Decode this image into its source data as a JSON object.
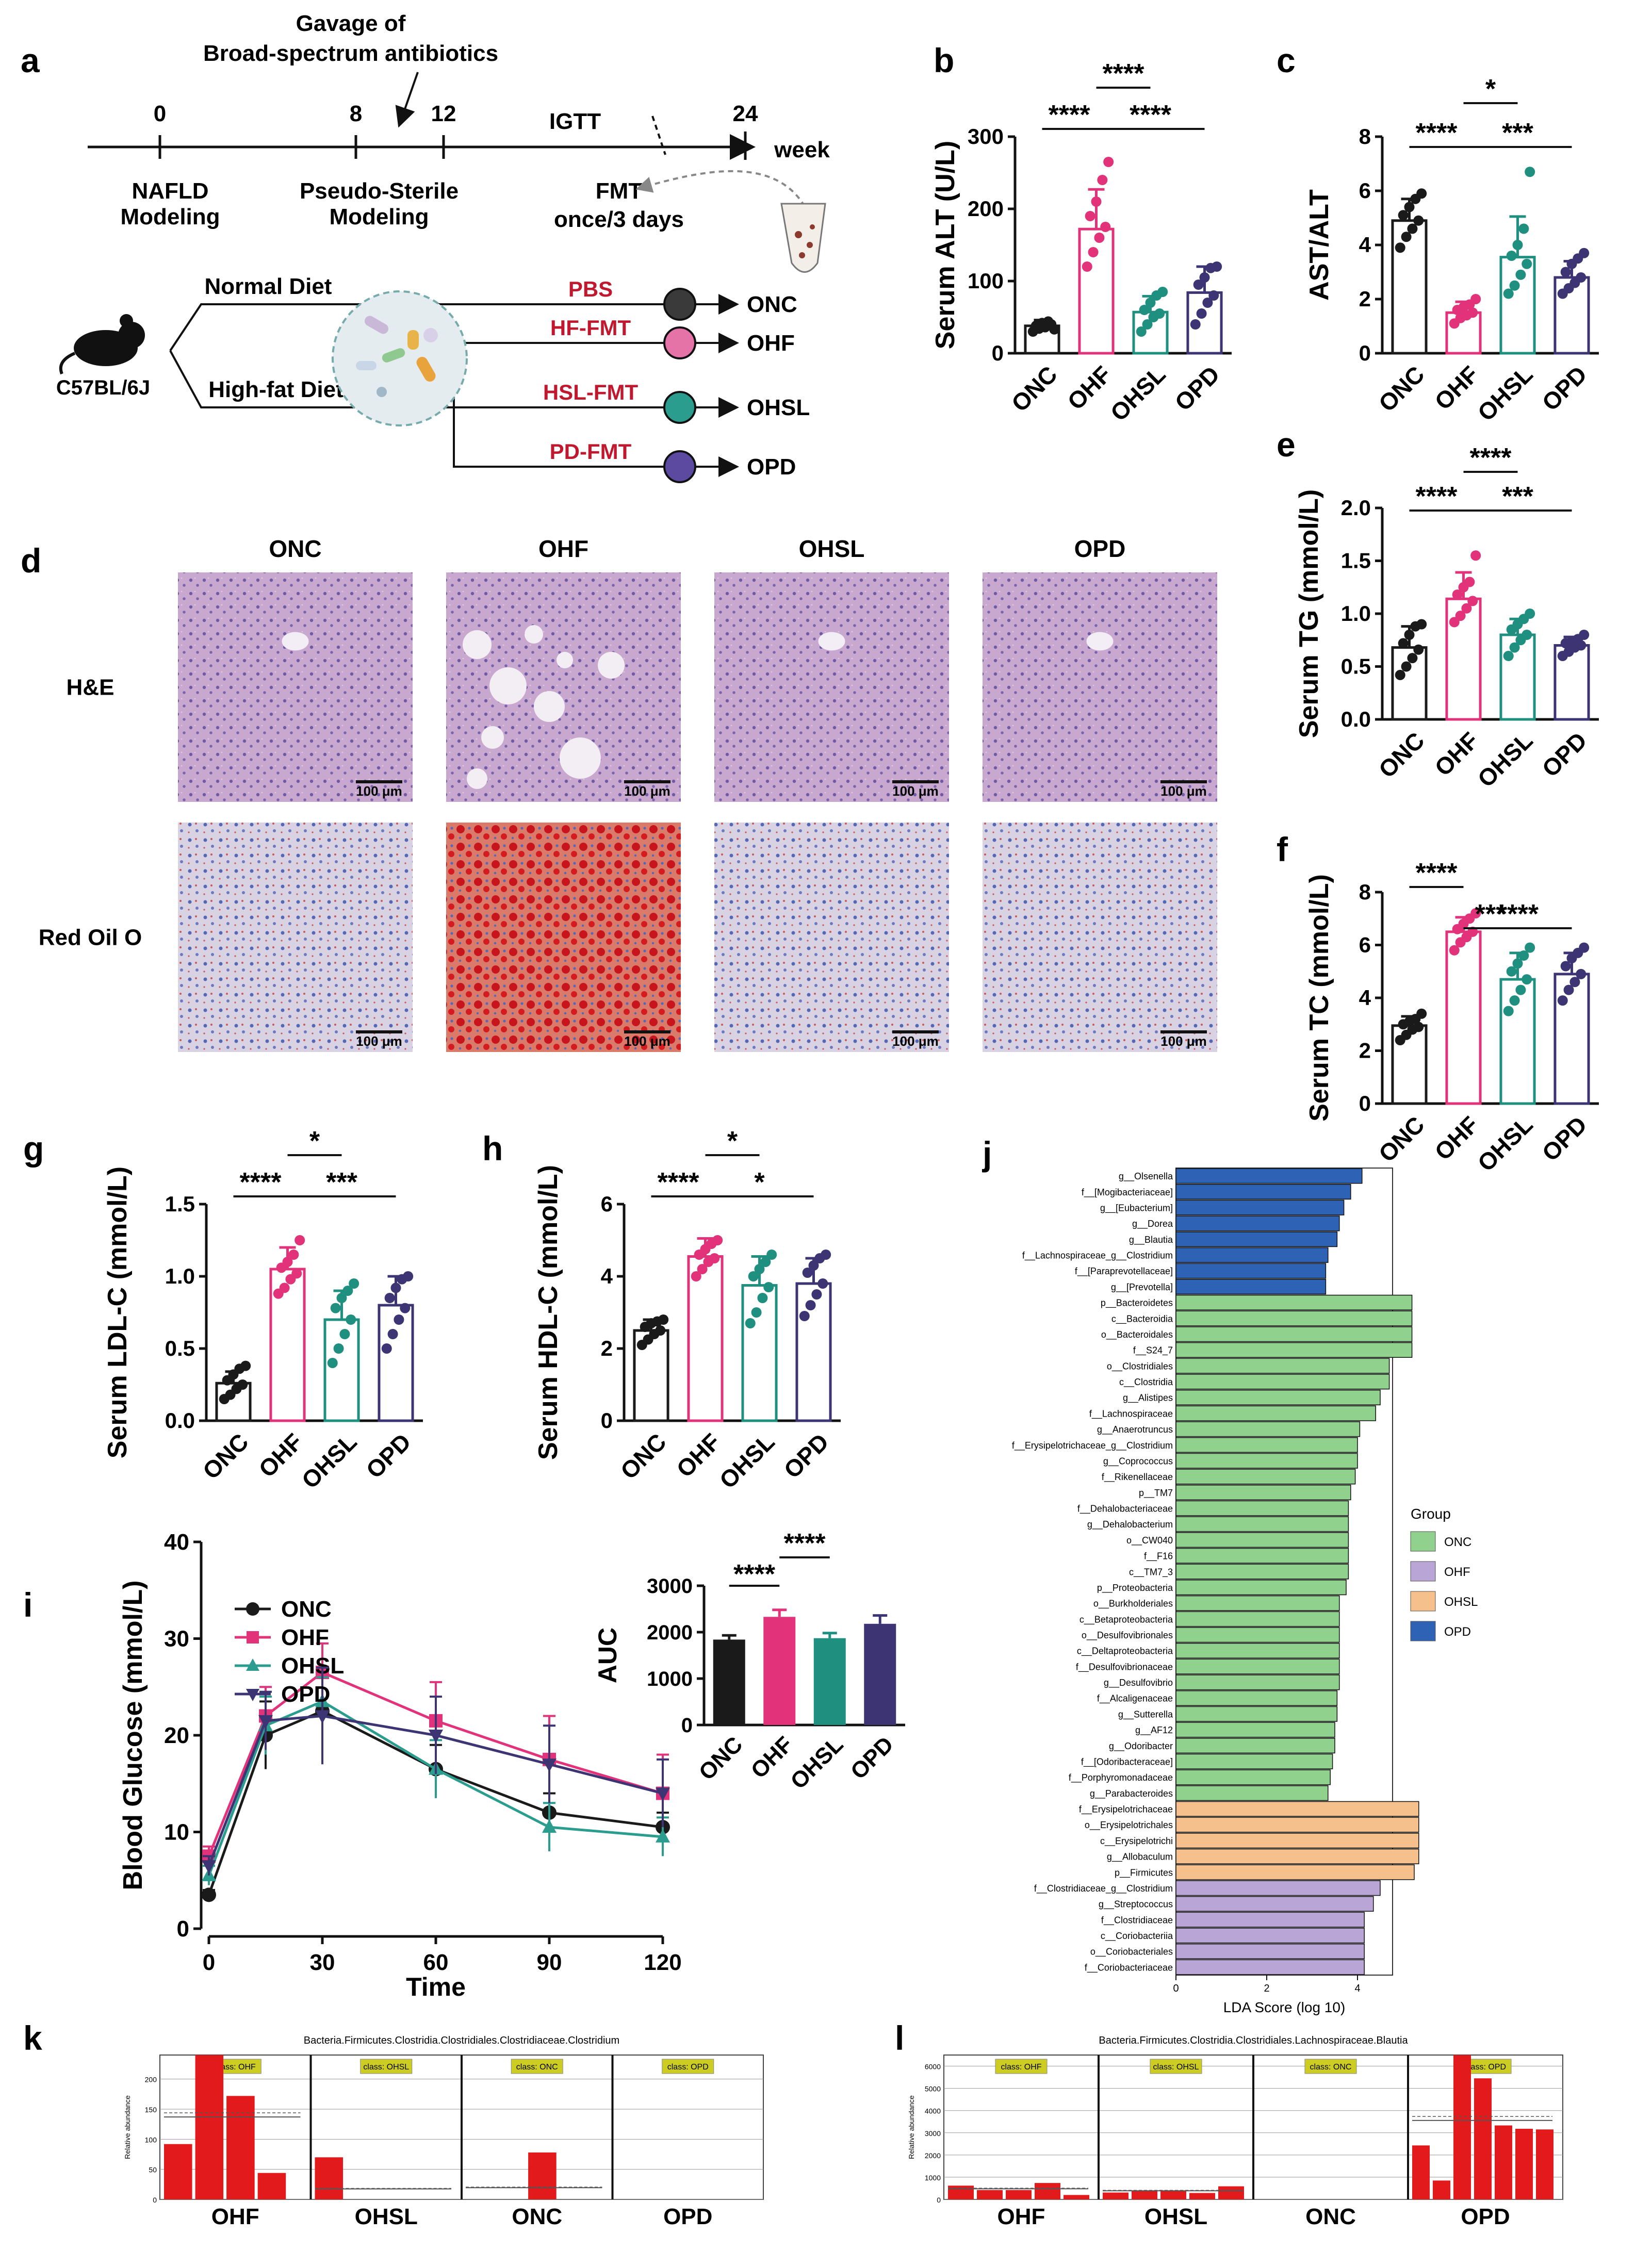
{
  "colors": {
    "ONC": "#1a1a1a",
    "OHF": "#e2327a",
    "OHSL": "#1f8f80",
    "OHSL_alt": "#2a9d8f",
    "OPD": "#3d3573",
    "green": "#8fd18d",
    "purple": "#b9a6d6",
    "orange": "#f6c08c",
    "blue": "#2e62b5",
    "red": "#e31a1c",
    "text_red": "#c0182e"
  },
  "panel_a": {
    "letter": "a",
    "gavage": [
      "Gavage of",
      "Broad-spectrum antibiotics"
    ],
    "igtt": "IGTT",
    "ticks": [
      "0",
      "8",
      "12",
      "24"
    ],
    "week": "week",
    "nafld": [
      "NAFLD",
      "Modeling"
    ],
    "pseudo": [
      "Pseudo-Sterile",
      "Modeling"
    ],
    "fmt": [
      "FMT",
      "once/3 days"
    ],
    "mouse": "C57BL/6J",
    "normal_diet": "Normal Diet",
    "high_fat_diet": "High-fat Diet",
    "treatments": [
      "PBS",
      "HF-FMT",
      "HSL-FMT",
      "PD-FMT"
    ],
    "groups": [
      "ONC",
      "OHF",
      "OHSL",
      "OPD"
    ]
  },
  "groups": [
    "ONC",
    "OHF",
    "OHSL",
    "OPD"
  ],
  "panel_b": {
    "letter": "b",
    "ylabel": "Serum ALT (U/L)",
    "ticks": [
      "0",
      "100",
      "200",
      "300"
    ],
    "ymax": 300,
    "means": [
      38,
      172,
      57,
      84
    ],
    "sd": [
      8,
      55,
      22,
      36
    ],
    "points": [
      [
        30,
        34,
        36,
        40,
        38,
        42,
        44,
        33
      ],
      [
        120,
        140,
        160,
        175,
        190,
        210,
        240,
        265
      ],
      [
        30,
        40,
        50,
        55,
        60,
        70,
        80,
        85
      ],
      [
        40,
        55,
        70,
        80,
        95,
        105,
        118,
        120
      ]
    ],
    "sig": [
      "****",
      "****",
      "****"
    ]
  },
  "panel_c": {
    "letter": "c",
    "ylabel": "AST/ALT",
    "ticks": [
      "0",
      "2",
      "4",
      "6",
      "8"
    ],
    "ymax": 8,
    "means": [
      4.9,
      1.5,
      3.55,
      2.8
    ],
    "sd": [
      0.8,
      0.4,
      1.5,
      0.6
    ],
    "points": [
      [
        3.9,
        4.3,
        4.6,
        4.9,
        5.1,
        5.4,
        5.7,
        5.9
      ],
      [
        1.1,
        1.3,
        1.4,
        1.5,
        1.6,
        1.7,
        1.8,
        2.0
      ],
      [
        2.2,
        2.5,
        2.9,
        3.3,
        3.6,
        4.0,
        4.6,
        6.7
      ],
      [
        2.2,
        2.4,
        2.6,
        2.8,
        3.0,
        3.3,
        3.5,
        3.7
      ]
    ],
    "sig": [
      "****",
      "***",
      "*"
    ]
  },
  "panel_e": {
    "letter": "e",
    "ylabel": "Serum TG (mmol/L)",
    "ticks": [
      "0.0",
      "0.5",
      "1.0",
      "1.5",
      "2.0"
    ],
    "ymax": 2.0,
    "means": [
      0.68,
      1.14,
      0.8,
      0.7
    ],
    "sd": [
      0.2,
      0.25,
      0.15,
      0.08
    ],
    "points": [
      [
        0.42,
        0.5,
        0.58,
        0.66,
        0.72,
        0.8,
        0.88,
        0.9
      ],
      [
        0.92,
        0.98,
        1.05,
        1.12,
        1.18,
        1.25,
        1.3,
        1.55
      ],
      [
        0.6,
        0.68,
        0.75,
        0.8,
        0.85,
        0.9,
        0.95,
        1.0
      ],
      [
        0.6,
        0.64,
        0.68,
        0.7,
        0.72,
        0.74,
        0.76,
        0.8
      ]
    ],
    "sig": [
      "****",
      "***",
      "****"
    ]
  },
  "panel_f": {
    "letter": "f",
    "ylabel": "Serum TC (mmol/L)",
    "ticks": [
      "0",
      "2",
      "4",
      "6",
      "8"
    ],
    "ymax": 8,
    "means": [
      2.95,
      6.5,
      4.7,
      4.9
    ],
    "sd": [
      0.35,
      0.55,
      1.0,
      0.8
    ],
    "points": [
      [
        2.4,
        2.6,
        2.8,
        2.9,
        3.0,
        3.1,
        3.2,
        3.4
      ],
      [
        5.8,
        6.1,
        6.3,
        6.5,
        6.6,
        6.8,
        7.0,
        7.2
      ],
      [
        3.5,
        3.9,
        4.3,
        4.7,
        5.0,
        5.3,
        5.6,
        5.9
      ],
      [
        3.9,
        4.3,
        4.6,
        4.9,
        5.2,
        5.5,
        5.7,
        5.9
      ]
    ],
    "sig": [
      "****",
      "****",
      "***"
    ]
  },
  "panel_g": {
    "letter": "g",
    "ylabel": "Serum LDL-C (mmol/L)",
    "ticks": [
      "0.0",
      "0.5",
      "1.0",
      "1.5"
    ],
    "ymax": 1.5,
    "means": [
      0.26,
      1.05,
      0.7,
      0.8
    ],
    "sd": [
      0.08,
      0.15,
      0.2,
      0.2
    ],
    "points": [
      [
        0.15,
        0.18,
        0.22,
        0.25,
        0.28,
        0.32,
        0.36,
        0.38
      ],
      [
        0.88,
        0.92,
        0.98,
        1.02,
        1.06,
        1.1,
        1.15,
        1.25
      ],
      [
        0.4,
        0.5,
        0.6,
        0.7,
        0.78,
        0.85,
        0.9,
        0.95
      ],
      [
        0.5,
        0.6,
        0.7,
        0.78,
        0.85,
        0.92,
        0.98,
        1.0
      ]
    ],
    "sig": [
      "****",
      "***",
      "*"
    ]
  },
  "panel_h": {
    "letter": "h",
    "ylabel": "Serum HDL-C (mmol/L)",
    "ticks": [
      "0",
      "2",
      "4",
      "6"
    ],
    "ymax": 6,
    "means": [
      2.5,
      4.55,
      3.75,
      3.8
    ],
    "sd": [
      0.3,
      0.5,
      0.8,
      0.7
    ],
    "points": [
      [
        2.1,
        2.25,
        2.4,
        2.5,
        2.6,
        2.7,
        2.75,
        2.8
      ],
      [
        4.0,
        4.2,
        4.4,
        4.5,
        4.6,
        4.75,
        4.9,
        5.0
      ],
      [
        2.7,
        3.0,
        3.4,
        3.7,
        4.0,
        4.2,
        4.4,
        4.6
      ],
      [
        2.9,
        3.2,
        3.5,
        3.8,
        4.1,
        4.3,
        4.5,
        4.6
      ]
    ],
    "sig": [
      "****",
      "*",
      "*"
    ]
  },
  "panel_d": {
    "letter": "d",
    "columns": [
      "ONC",
      "OHF",
      "OHSL",
      "OPD"
    ],
    "rows": [
      "H&E",
      "Red Oil O"
    ],
    "scale": "100 μm"
  },
  "panel_i": {
    "letter": "i",
    "ylabel": "Blood Glucose  (mmol/L)",
    "xlabel": "Time",
    "xticks": [
      "0",
      "30",
      "60",
      "90",
      "120"
    ],
    "yticks": [
      "0",
      "10",
      "20",
      "30",
      "40"
    ],
    "x": [
      0,
      15,
      30,
      60,
      90,
      120
    ],
    "series": [
      {
        "name": "ONC",
        "values": [
          3.5,
          20.0,
          22.5,
          16.5,
          12.0,
          10.5
        ],
        "sd": [
          0.5,
          3.5,
          4.5,
          2.5,
          2.0,
          1.5
        ]
      },
      {
        "name": "OHF",
        "values": [
          7.5,
          22.0,
          26.5,
          21.5,
          17.5,
          14.0
        ],
        "sd": [
          1.0,
          3.0,
          3.0,
          4.0,
          4.5,
          4.0
        ]
      },
      {
        "name": "OHSL",
        "values": [
          5.5,
          21.0,
          23.5,
          16.5,
          10.5,
          9.5
        ],
        "sd": [
          1.0,
          3.0,
          2.5,
          3.0,
          2.5,
          2.0
        ]
      },
      {
        "name": "OPD",
        "values": [
          6.5,
          21.5,
          22.0,
          20.0,
          17.0,
          14.0
        ],
        "sd": [
          1.0,
          3.0,
          5.0,
          4.0,
          4.0,
          3.5
        ]
      }
    ],
    "auc": {
      "ylabel": "AUC",
      "ticks": [
        "0",
        "1000",
        "2000",
        "3000"
      ],
      "values": [
        1840,
        2330,
        1870,
        2180
      ],
      "sd": [
        90,
        150,
        110,
        180
      ],
      "sig": [
        "****",
        "****"
      ]
    }
  },
  "chart_data": {
    "type": "bar",
    "panel": "j",
    "xlabel": "LDA Score (log 10)",
    "xticks": [
      "0",
      "2",
      "4"
    ],
    "legend_title": "Group",
    "legend": [
      "ONC",
      "OHF",
      "OHSL",
      "OPD"
    ],
    "taxa": [
      {
        "name": "g__Olsenella",
        "group": "OPD",
        "value": 4.1
      },
      {
        "name": "f__[Mogibacteriaceae]",
        "group": "OPD",
        "value": 3.85
      },
      {
        "name": "g__[Eubacterium]",
        "group": "OPD",
        "value": 3.7
      },
      {
        "name": "g__Dorea",
        "group": "OPD",
        "value": 3.6
      },
      {
        "name": "g__Blautia",
        "group": "OPD",
        "value": 3.55
      },
      {
        "name": "f__Lachnospiraceae_g__Clostridium",
        "group": "OPD",
        "value": 3.35
      },
      {
        "name": "f__[Paraprevotellaceae]",
        "group": "OPD",
        "value": 3.3
      },
      {
        "name": "g__[Prevotella]",
        "group": "OPD",
        "value": 3.3
      },
      {
        "name": "p__Bacteroidetes",
        "group": "ONC",
        "value": 5.2
      },
      {
        "name": "c__Bacteroidia",
        "group": "ONC",
        "value": 5.2
      },
      {
        "name": "o__Bacteroidales",
        "group": "ONC",
        "value": 5.2
      },
      {
        "name": "f__S24_7",
        "group": "ONC",
        "value": 5.2
      },
      {
        "name": "o__Clostridiales",
        "group": "ONC",
        "value": 4.7
      },
      {
        "name": "c__Clostridia",
        "group": "ONC",
        "value": 4.7
      },
      {
        "name": "g__Alistipes",
        "group": "ONC",
        "value": 4.5
      },
      {
        "name": "f__Lachnospiraceae",
        "group": "ONC",
        "value": 4.4
      },
      {
        "name": "g__Anaerotruncus",
        "group": "ONC",
        "value": 4.05
      },
      {
        "name": "f__Erysipelotrichaceae_g__Clostridium",
        "group": "ONC",
        "value": 4.0
      },
      {
        "name": "g__Coprococcus",
        "group": "ONC",
        "value": 4.0
      },
      {
        "name": "f__Rikenellaceae",
        "group": "ONC",
        "value": 3.95
      },
      {
        "name": "p__TM7",
        "group": "ONC",
        "value": 3.85
      },
      {
        "name": "f__Dehalobacteriaceae",
        "group": "ONC",
        "value": 3.8
      },
      {
        "name": "g__Dehalobacterium",
        "group": "ONC",
        "value": 3.8
      },
      {
        "name": "o__CW040",
        "group": "ONC",
        "value": 3.8
      },
      {
        "name": "f__F16",
        "group": "ONC",
        "value": 3.8
      },
      {
        "name": "c__TM7_3",
        "group": "ONC",
        "value": 3.8
      },
      {
        "name": "p__Proteobacteria",
        "group": "ONC",
        "value": 3.75
      },
      {
        "name": "o__Burkholderiales",
        "group": "ONC",
        "value": 3.6
      },
      {
        "name": "c__Betaproteobacteria",
        "group": "ONC",
        "value": 3.6
      },
      {
        "name": "o__Desulfovibrionales",
        "group": "ONC",
        "value": 3.6
      },
      {
        "name": "c__Deltaproteobacteria",
        "group": "ONC",
        "value": 3.6
      },
      {
        "name": "f__Desulfovibrionaceae",
        "group": "ONC",
        "value": 3.6
      },
      {
        "name": "g__Desulfovibrio",
        "group": "ONC",
        "value": 3.6
      },
      {
        "name": "f__Alcaligenaceae",
        "group": "ONC",
        "value": 3.55
      },
      {
        "name": "g__Sutterella",
        "group": "ONC",
        "value": 3.55
      },
      {
        "name": "g__AF12",
        "group": "ONC",
        "value": 3.5
      },
      {
        "name": "g__Odoribacter",
        "group": "ONC",
        "value": 3.5
      },
      {
        "name": "f__[Odoribacteraceae]",
        "group": "ONC",
        "value": 3.45
      },
      {
        "name": "f__Porphyromonadaceae",
        "group": "ONC",
        "value": 3.4
      },
      {
        "name": "g__Parabacteroides",
        "group": "ONC",
        "value": 3.35
      },
      {
        "name": "f__Erysipelotrichaceae",
        "group": "OHSL",
        "value": 5.35
      },
      {
        "name": "o__Erysipelotrichales",
        "group": "OHSL",
        "value": 5.35
      },
      {
        "name": "c__Erysipelotrichi",
        "group": "OHSL",
        "value": 5.35
      },
      {
        "name": "g__Allobaculum",
        "group": "OHSL",
        "value": 5.35
      },
      {
        "name": "p__Firmicutes",
        "group": "OHSL",
        "value": 5.25
      },
      {
        "name": "f__Clostridiaceae_g__Clostridium",
        "group": "OHF",
        "value": 4.5
      },
      {
        "name": "g__Streptococcus",
        "group": "OHF",
        "value": 4.35
      },
      {
        "name": "f__Clostridiaceae",
        "group": "OHF",
        "value": 4.15
      },
      {
        "name": "c__Coriobacteriia",
        "group": "OHF",
        "value": 4.15
      },
      {
        "name": "o__Coriobacteriales",
        "group": "OHF",
        "value": 4.15
      },
      {
        "name": "f__Coriobacteriaceae",
        "group": "OHF",
        "value": 4.15
      }
    ]
  },
  "panel_k": {
    "letter": "k",
    "title": "Bacteria.Firmicutes.Clostridia.Clostridiales.Clostridiaceae.Clostridium",
    "ylabel": "Relative abundance",
    "yticks": [
      "0",
      "50",
      "100",
      "150",
      "200"
    ],
    "ymax": 240,
    "groups": [
      {
        "name": "OHF",
        "label": "class: OHF",
        "values": [
          92,
          240,
          172,
          44
        ]
      },
      {
        "name": "OHSL",
        "label": "class: OHSL",
        "values": [
          70,
          0,
          0,
          0
        ]
      },
      {
        "name": "ONC",
        "label": "class: ONC",
        "values": [
          0,
          0,
          78,
          0
        ]
      },
      {
        "name": "OPD",
        "label": "class: OPD",
        "values": [
          0,
          0,
          0,
          0
        ]
      }
    ]
  },
  "panel_l": {
    "letter": "l",
    "title": "Bacteria.Firmicutes.Clostridia.Clostridiales.Lachnospiraceae.Blautia",
    "ylabel": "Relative abundance",
    "yticks": [
      "0",
      "1000",
      "2000",
      "3000",
      "4000",
      "5000",
      "6000"
    ],
    "ymax": 6500,
    "groups": [
      {
        "name": "OHF",
        "label": "class: OHF",
        "values": [
          620,
          420,
          420,
          740,
          200
        ]
      },
      {
        "name": "OHSL",
        "label": "class: OHSL",
        "values": [
          310,
          380,
          380,
          290,
          590
        ]
      },
      {
        "name": "ONC",
        "label": "class: ONC",
        "values": [
          0,
          0,
          0,
          0,
          0
        ]
      },
      {
        "name": "OPD",
        "label": "class: OPD",
        "values": [
          2430,
          850,
          6500,
          5450,
          3330,
          3180,
          3150
        ]
      }
    ]
  }
}
